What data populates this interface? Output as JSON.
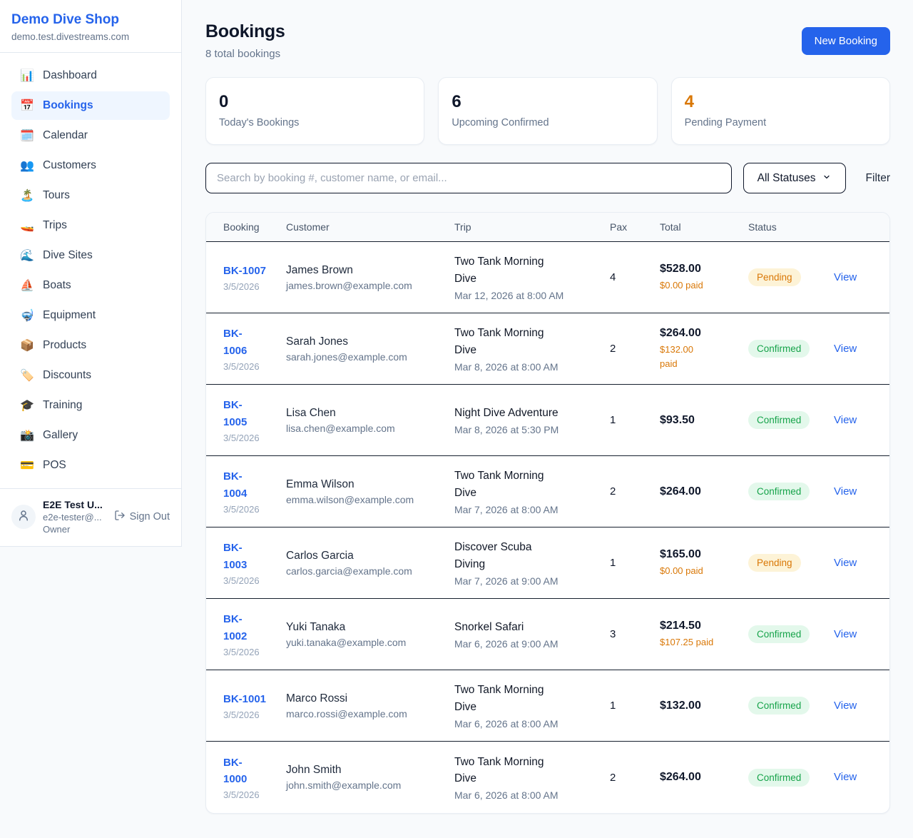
{
  "sidebar": {
    "brand": "Demo Dive Shop",
    "domain": "demo.test.divestreams.com",
    "items": [
      {
        "id": "dashboard",
        "icon": "📊",
        "label": "Dashboard",
        "active": false
      },
      {
        "id": "bookings",
        "icon": "📅",
        "label": "Bookings",
        "active": true
      },
      {
        "id": "calendar",
        "icon": "🗓️",
        "label": "Calendar",
        "active": false
      },
      {
        "id": "customers",
        "icon": "👥",
        "label": "Customers",
        "active": false
      },
      {
        "id": "tours",
        "icon": "🏝️",
        "label": "Tours",
        "active": false
      },
      {
        "id": "trips",
        "icon": "🚤",
        "label": "Trips",
        "active": false
      },
      {
        "id": "dive-sites",
        "icon": "🌊",
        "label": "Dive Sites",
        "active": false
      },
      {
        "id": "boats",
        "icon": "⛵",
        "label": "Boats",
        "active": false
      },
      {
        "id": "equipment",
        "icon": "🤿",
        "label": "Equipment",
        "active": false
      },
      {
        "id": "products",
        "icon": "📦",
        "label": "Products",
        "active": false
      },
      {
        "id": "discounts",
        "icon": "🏷️",
        "label": "Discounts",
        "active": false
      },
      {
        "id": "training",
        "icon": "🎓",
        "label": "Training",
        "active": false
      },
      {
        "id": "gallery",
        "icon": "📸",
        "label": "Gallery",
        "active": false
      },
      {
        "id": "pos",
        "icon": "💳",
        "label": "POS",
        "active": false
      }
    ],
    "user": {
      "name": "E2E Test U...",
      "email": "e2e-tester@...",
      "role": "Owner",
      "sign_out_label": "Sign Out"
    }
  },
  "header": {
    "title": "Bookings",
    "subtitle": "8 total bookings",
    "new_booking_label": "New Booking"
  },
  "stats": [
    {
      "value": "0",
      "label": "Today's Bookings",
      "accent": "dark"
    },
    {
      "value": "6",
      "label": "Upcoming Confirmed",
      "accent": "dark"
    },
    {
      "value": "4",
      "label": "Pending Payment",
      "accent": "orange"
    }
  ],
  "toolbar": {
    "search_placeholder": "Search by booking #, customer name, or email...",
    "status_filter_value": "All Statuses",
    "filter_label": "Filter"
  },
  "table": {
    "columns": [
      "Booking",
      "Customer",
      "Trip",
      "Pax",
      "Total",
      "Status",
      ""
    ],
    "view_label": "View",
    "rows": [
      {
        "booking_display": "BK-1007",
        "date": "3/5/2026",
        "customer": "James Brown",
        "email": "james.brown@example.com",
        "trip": "Two Tank Morning\nDive",
        "trip_date": "Mar 12, 2026 at 8:00 AM",
        "pax": "4",
        "total": "$528.00",
        "paid": "$0.00 paid",
        "status": "Pending"
      },
      {
        "booking_display": "BK-\n1006",
        "date": "3/5/2026",
        "customer": "Sarah Jones",
        "email": "sarah.jones@example.com",
        "trip": "Two Tank Morning\nDive",
        "trip_date": "Mar 8, 2026 at 8:00 AM",
        "pax": "2",
        "total": "$264.00",
        "paid": "$132.00\npaid",
        "status": "Confirmed"
      },
      {
        "booking_display": "BK-\n1005",
        "date": "3/5/2026",
        "customer": "Lisa Chen",
        "email": "lisa.chen@example.com",
        "trip": "Night Dive Adventure",
        "trip_date": "Mar 8, 2026 at 5:30 PM",
        "pax": "1",
        "total": "$93.50",
        "paid": null,
        "status": "Confirmed"
      },
      {
        "booking_display": "BK-\n1004",
        "date": "3/5/2026",
        "customer": "Emma Wilson",
        "email": "emma.wilson@example.com",
        "trip": "Two Tank Morning\nDive",
        "trip_date": "Mar 7, 2026 at 8:00 AM",
        "pax": "2",
        "total": "$264.00",
        "paid": null,
        "status": "Confirmed"
      },
      {
        "booking_display": "BK-\n1003",
        "date": "3/5/2026",
        "customer": "Carlos Garcia",
        "email": "carlos.garcia@example.com",
        "trip": "Discover Scuba\nDiving",
        "trip_date": "Mar 7, 2026 at 9:00 AM",
        "pax": "1",
        "total": "$165.00",
        "paid": "$0.00 paid",
        "status": "Pending"
      },
      {
        "booking_display": "BK-\n1002",
        "date": "3/5/2026",
        "customer": "Yuki Tanaka",
        "email": "yuki.tanaka@example.com",
        "trip": "Snorkel Safari",
        "trip_date": "Mar 6, 2026 at 9:00 AM",
        "pax": "3",
        "total": "$214.50",
        "paid": "$107.25 paid",
        "status": "Confirmed"
      },
      {
        "booking_display": "BK-1001",
        "date": "3/5/2026",
        "customer": "Marco Rossi",
        "email": "marco.rossi@example.com",
        "trip": "Two Tank Morning\nDive",
        "trip_date": "Mar 6, 2026 at 8:00 AM",
        "pax": "1",
        "total": "$132.00",
        "paid": null,
        "status": "Confirmed"
      },
      {
        "booking_display": "BK-\n1000",
        "date": "3/5/2026",
        "customer": "John Smith",
        "email": "john.smith@example.com",
        "trip": "Two Tank Morning\nDive",
        "trip_date": "Mar 6, 2026 at 8:00 AM",
        "pax": "2",
        "total": "$264.00",
        "paid": null,
        "status": "Confirmed"
      }
    ]
  },
  "colors": {
    "accent": "#2563eb",
    "orange": "#d97706",
    "green": "#16a34a",
    "pending_bg": "#fdf3d7",
    "confirmed_bg": "#e3f8eb",
    "page_bg": "#f8fafc"
  }
}
